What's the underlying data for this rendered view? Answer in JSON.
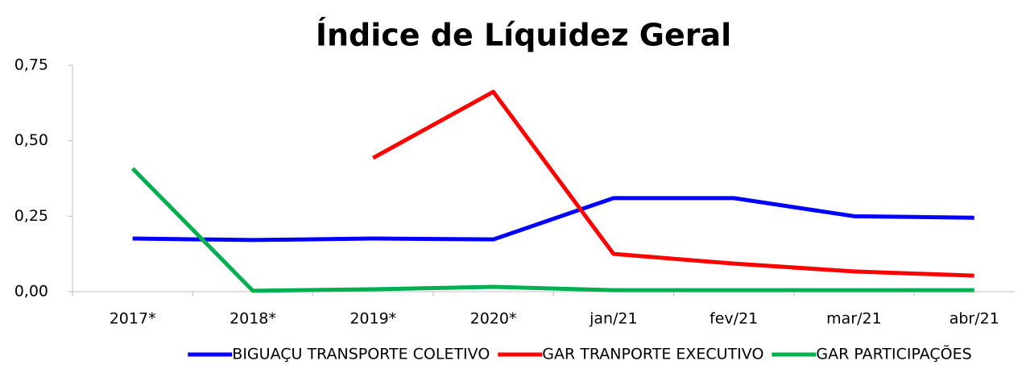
{
  "chart_data": {
    "type": "line",
    "title": "Índice de Líquidez Geral",
    "categories": [
      "2017*",
      "2018*",
      "2019*",
      "2020*",
      "jan/21",
      "fev/21",
      "mar/21",
      "abr/21"
    ],
    "series": [
      {
        "name": "BIGUAÇU TRANSPORTE COLETIVO",
        "color": "#0000ff",
        "values": [
          0.176,
          0.171,
          0.176,
          0.173,
          0.31,
          0.31,
          0.25,
          0.245
        ]
      },
      {
        "name": "GAR TRANPORTE EXECUTIVO",
        "color": "#ff0000",
        "values": [
          null,
          null,
          0.443,
          0.662,
          0.125,
          0.093,
          0.067,
          0.053
        ]
      },
      {
        "name": "GAR PARTICIPAÇÕES",
        "color": "#00b050",
        "values": [
          0.408,
          0.003,
          0.008,
          0.016,
          0.005,
          0.005,
          0.005,
          0.005
        ]
      }
    ],
    "ylim": [
      0,
      0.75
    ],
    "yticks": [
      {
        "value": 0,
        "label": "0,00"
      },
      {
        "value": 0.25,
        "label": "0,25"
      },
      {
        "value": 0.5,
        "label": "0,50"
      },
      {
        "value": 0.75,
        "label": "0,75"
      }
    ],
    "grid": false
  }
}
